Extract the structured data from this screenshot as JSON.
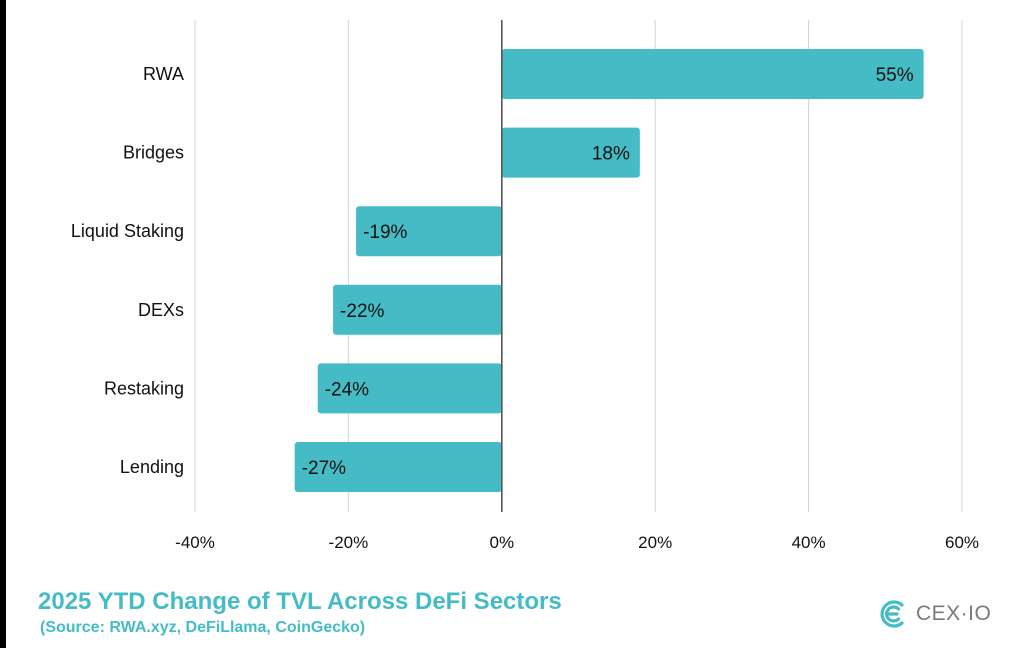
{
  "chart_data": {
    "type": "bar",
    "orientation": "horizontal",
    "title": "2025 YTD Change of TVL Across DeFi Sectors",
    "subtitle": "(Source: RWA.xyz, DeFiLlama, CoinGecko)",
    "categories": [
      "RWA",
      "Bridges",
      "Liquid Staking",
      "DEXs",
      "Restaking",
      "Lending"
    ],
    "values": [
      55,
      18,
      -19,
      -22,
      -24,
      -27
    ],
    "data_labels": [
      "55%",
      "18%",
      "-19%",
      "-22%",
      "-24%",
      "-27%"
    ],
    "xlim": [
      -40,
      60
    ],
    "xticks": [
      -40,
      -20,
      0,
      20,
      40,
      60
    ],
    "xtick_labels": [
      "-40%",
      "-20%",
      "0%",
      "20%",
      "40%",
      "60%"
    ],
    "xlabel": "",
    "ylabel": "",
    "grid": true,
    "bar_color": "#45bcc5",
    "grid_color": "#d3d3d3",
    "zero_line_color": "#555555"
  },
  "logo": {
    "text": "CEX·IO",
    "icon": "cex-io-logo-icon",
    "color": "#45bcc5"
  }
}
